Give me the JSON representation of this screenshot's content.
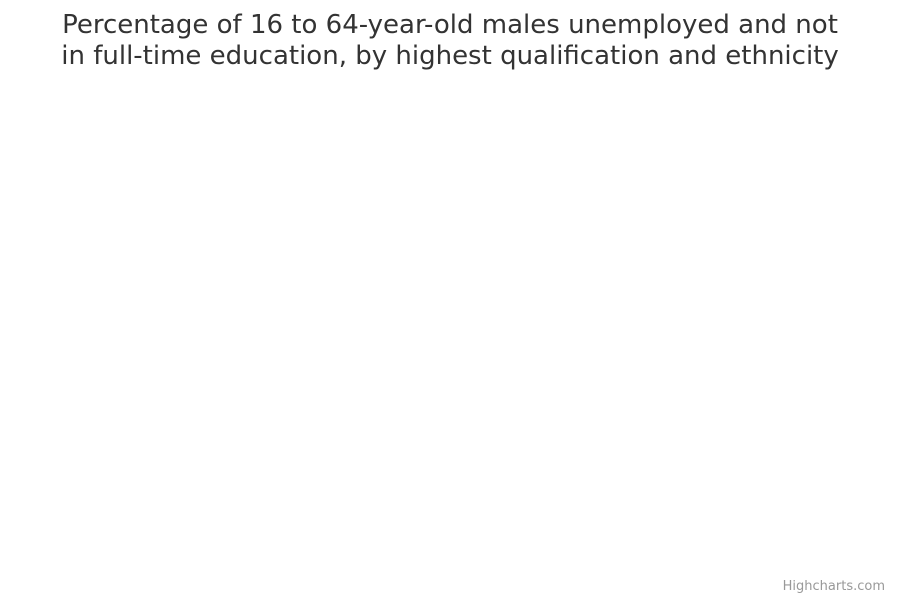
{
  "chart_data": {
    "title": "Percentage of 16 to 64-year-old males unemployed and not in full-time education, by highest qualification and ethnicity"
  },
  "credits": {
    "label": "Highcharts.com"
  }
}
